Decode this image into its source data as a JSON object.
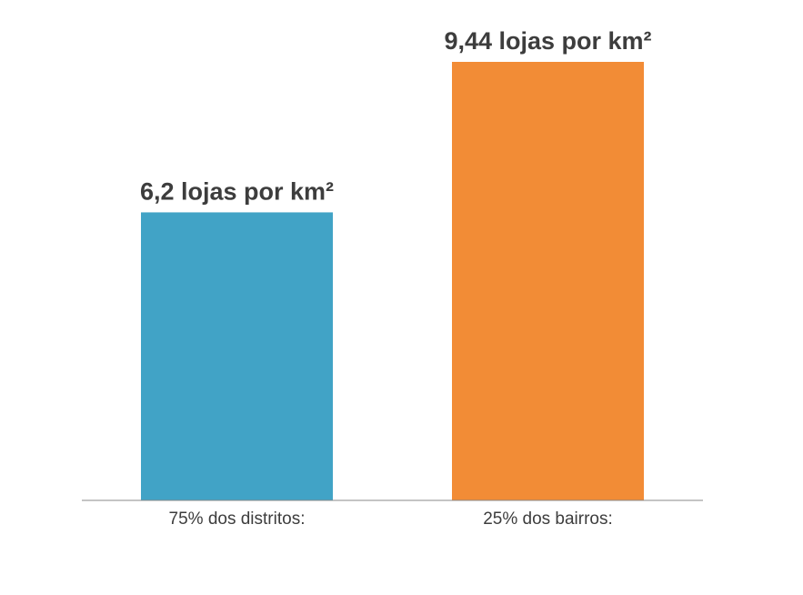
{
  "chart_data": {
    "type": "bar",
    "categories": [
      "75% dos distritos:",
      "25% dos bairros:"
    ],
    "values": [
      6.2,
      9.44
    ],
    "data_labels": [
      "6,2 lojas por km²",
      "9,44 lojas por km²"
    ],
    "colors": [
      "#41a3c6",
      "#f28c36"
    ],
    "axis_color": "#888888",
    "ylim": [
      0,
      9.44
    ],
    "grid": false,
    "legend": "none"
  }
}
